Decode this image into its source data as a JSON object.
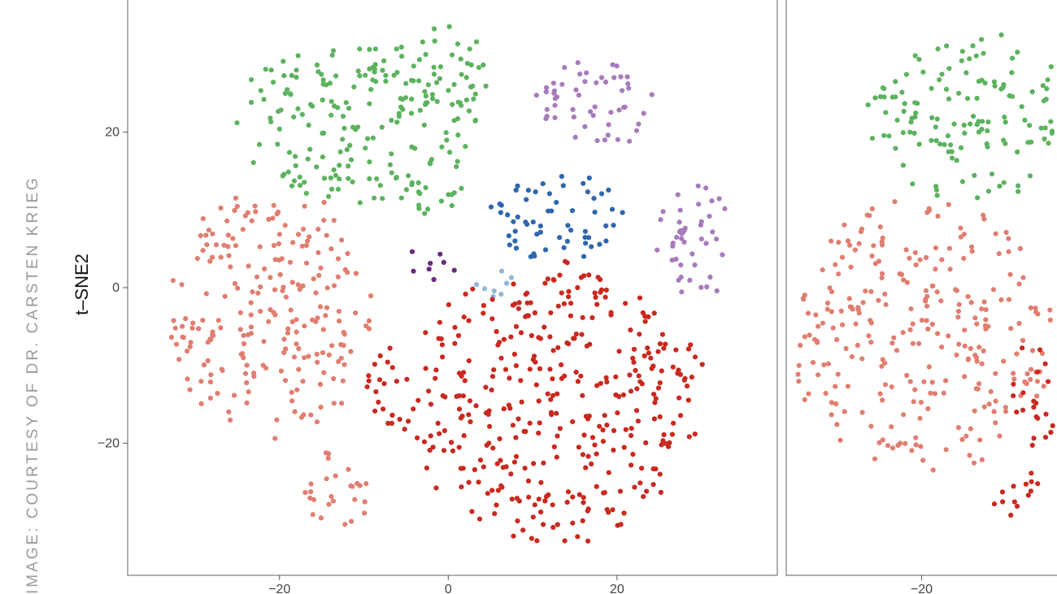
{
  "credit": "IMAGE: COURTESY OF DR. CARSTEN KRIEG",
  "chart_data": [
    {
      "type": "scatter",
      "title": "",
      "xlabel": "",
      "ylabel": "t–SNE2",
      "xlim": [
        -38,
        39
      ],
      "ylim": [
        -37,
        37
      ],
      "x_ticks": [
        "−20",
        "0",
        "20"
      ],
      "x_tick_values": [
        -20,
        0,
        20
      ],
      "y_ticks": [
        "20",
        "0",
        "−20"
      ],
      "y_tick_values": [
        20,
        0,
        -20
      ],
      "grid": false,
      "legend": "none",
      "series": [
        {
          "color": "#5cb25e",
          "regions": [
            [
              -11,
              21,
              15,
              11
            ],
            [
              0,
              28,
              5,
              6
            ],
            [
              -2,
              12,
              4,
              3
            ]
          ]
        },
        {
          "color": "#a77bbb",
          "regions": [
            [
              17,
              24,
              8,
              6
            ],
            [
              29,
              6,
              5,
              8
            ]
          ]
        },
        {
          "color": "#2f66ae",
          "regions": [
            [
              13,
              9,
              9,
              6
            ]
          ]
        },
        {
          "color": "#6a2a7e",
          "regions": [
            [
              -2,
              3,
              3,
              2.5
            ]
          ]
        },
        {
          "color": "#8fb8da",
          "regions": [
            [
              5,
              1,
              3,
              2.5
            ]
          ]
        },
        {
          "color": "#e07e70",
          "regions": [
            [
              -21,
              -4,
              12,
              17
            ],
            [
              -13,
              -26,
              4,
              6
            ]
          ]
        },
        {
          "color": "#c9291f",
          "regions": [
            [
              13,
              -15,
              18,
              18
            ],
            [
              -7,
              -13,
              3,
              6
            ],
            [
              16,
              1,
              4,
              3
            ]
          ]
        }
      ]
    },
    {
      "type": "scatter",
      "title": "",
      "xlabel": "",
      "ylabel": "",
      "xlim": [
        -34,
        -6
      ],
      "ylim": [
        -37,
        37
      ],
      "x_ticks": [
        "−20"
      ],
      "x_tick_values": [
        -20
      ],
      "grid": false,
      "legend": "none",
      "series": [
        {
          "color": "#5cb25e",
          "regions": [
            [
              -14,
              22,
              12,
              11
            ]
          ]
        },
        {
          "color": "#e07e70",
          "regions": [
            [
              -20,
              -6,
              14,
              18
            ]
          ]
        },
        {
          "color": "#c9291f",
          "regions": [
            [
              -8,
              -14,
              3,
              7
            ],
            [
              -10,
              -27,
              3,
              4
            ]
          ]
        }
      ]
    }
  ]
}
